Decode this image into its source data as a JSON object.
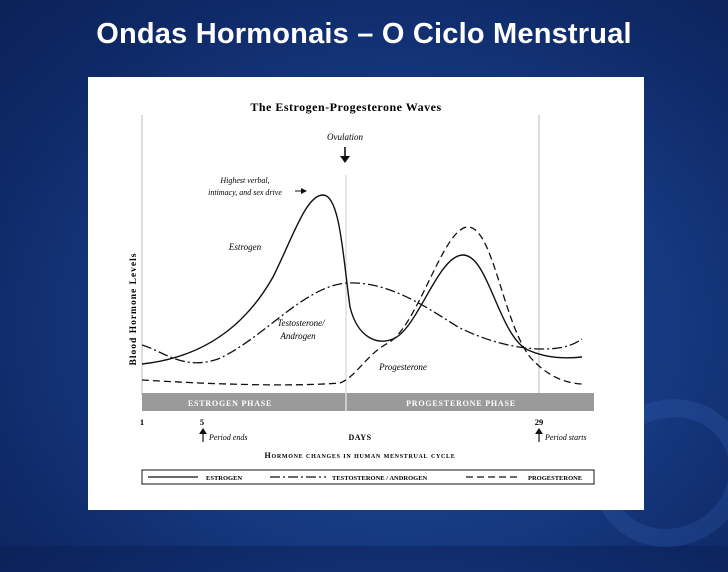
{
  "slide": {
    "title": "Ondas Hormonais – O Ciclo Menstrual"
  },
  "figure": {
    "title": "The Estrogen-Progesterone Waves",
    "ylabel": "Blood Hormone Levels",
    "ovulation_label": "Ovulation",
    "annotation_peak": [
      "Highest verbal,",
      "intimacy, and sex drive"
    ],
    "curve_labels": {
      "estrogen": "Estrogen",
      "testosterone": [
        "Testosterone/",
        "Androgen"
      ],
      "progesterone": "Progesterone"
    },
    "phase_bar": {
      "estrogen_phase": "ESTROGEN PHASE",
      "progesterone_phase": "PROGESTERONE PHASE",
      "color": "#9a9a9a"
    },
    "day_ticks": [
      "1",
      "5",
      "29"
    ],
    "period_ends": "Period ends",
    "period_starts": "Period starts",
    "xlabel": "DAYS",
    "caption": "Hormone changes in human menstrual cycle",
    "legend": {
      "estrogen": "ESTROGEN",
      "testosterone": "TESTOSTERONE / ANDROGEN",
      "progesterone": "PROGESTERONE"
    }
  },
  "colors": {
    "background": "#163a82",
    "title": "#ffffff",
    "line": "#111111"
  }
}
